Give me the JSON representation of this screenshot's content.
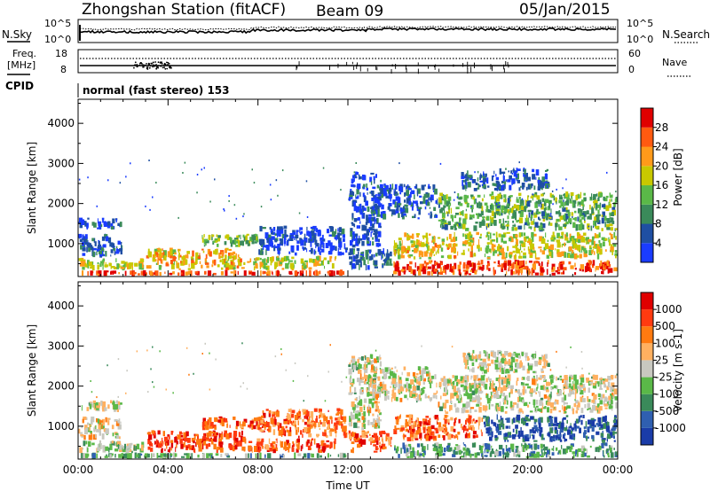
{
  "header": {
    "title": "Zhongshan Station (fitACF)",
    "beam": "Beam 09",
    "date": "05/Jan/2015"
  },
  "top_panels": {
    "nsky": {
      "label": "N.Sky",
      "ticks": [
        "10^5",
        "10^0"
      ]
    },
    "nsearch": {
      "label": "N.Search",
      "ticks": [
        "10^5",
        "10^0"
      ]
    },
    "freq": {
      "label_line1": "Freq.",
      "label_line2": "[MHz]",
      "ticks": [
        "18",
        "8"
      ]
    },
    "nave": {
      "label": "Nave",
      "ticks": [
        "60",
        "0"
      ]
    },
    "cpid": {
      "label": "CPID",
      "text": "normal (fast stereo) 153"
    }
  },
  "chart_data": [
    {
      "type": "heatmap",
      "name": "power",
      "ylabel": "Slant Range [km]",
      "xlabel": "",
      "xlim": [
        0,
        24
      ],
      "ylim": [
        180,
        4600
      ],
      "y_ticks": [
        1000,
        2000,
        3000,
        4000
      ],
      "colorbar": {
        "label": "Power [dB]",
        "ticks": [
          "4",
          "8",
          "12",
          "16",
          "20",
          "24",
          "28"
        ],
        "colors": [
          "#1a3cff",
          "#1f4fa3",
          "#3a8a5a",
          "#5ab848",
          "#c8c800",
          "#ff9a1a",
          "#ff5a10",
          "#e00000"
        ]
      },
      "regions": [
        {
          "t0": 0.0,
          "t1": 12.0,
          "r0": 200,
          "r1": 330,
          "level": 0.85
        },
        {
          "t0": 0.0,
          "t1": 3.0,
          "r0": 330,
          "r1": 650,
          "level": 0.55
        },
        {
          "t0": 0.0,
          "t1": 2.0,
          "r0": 650,
          "r1": 1250,
          "level": 0.18
        },
        {
          "t0": 0.0,
          "t1": 2.0,
          "r0": 1350,
          "r1": 1650,
          "level": 0.12
        },
        {
          "t0": 3.0,
          "t1": 7.5,
          "r0": 330,
          "r1": 900,
          "level": 0.65
        },
        {
          "t0": 5.5,
          "t1": 8.5,
          "r0": 900,
          "r1": 1250,
          "level": 0.45
        },
        {
          "t0": 7.5,
          "t1": 11.5,
          "r0": 330,
          "r1": 700,
          "level": 0.55
        },
        {
          "t0": 8.0,
          "t1": 12.0,
          "r0": 700,
          "r1": 1450,
          "level": 0.1
        },
        {
          "t0": 12.0,
          "t1": 13.5,
          "r0": 900,
          "r1": 2800,
          "level": 0.12
        },
        {
          "t0": 12.0,
          "t1": 14.0,
          "r0": 330,
          "r1": 900,
          "level": 0.25
        },
        {
          "t0": 14.0,
          "t1": 18.0,
          "r0": 600,
          "r1": 1300,
          "level": 0.6
        },
        {
          "t0": 14.0,
          "t1": 24.0,
          "r0": 200,
          "r1": 600,
          "level": 0.85
        },
        {
          "t0": 13.0,
          "t1": 16.0,
          "r0": 1600,
          "r1": 2500,
          "level": 0.15
        },
        {
          "t0": 16.0,
          "t1": 24.0,
          "r0": 1300,
          "r1": 2300,
          "level": 0.4
        },
        {
          "t0": 17.0,
          "t1": 21.0,
          "r0": 2300,
          "r1": 2900,
          "level": 0.2
        },
        {
          "t0": 18.0,
          "t1": 24.0,
          "r0": 600,
          "r1": 1300,
          "level": 0.55
        }
      ]
    },
    {
      "type": "heatmap",
      "name": "velocity",
      "ylabel": "Slant Range [km]",
      "xlabel": "Time UT",
      "xlim": [
        0,
        24
      ],
      "ylim": [
        180,
        4600
      ],
      "y_ticks": [
        1000,
        2000,
        3000,
        4000
      ],
      "x_ticks": [
        "00:00",
        "04:00",
        "08:00",
        "12:00",
        "16:00",
        "20:00",
        "00:00"
      ],
      "colorbar": {
        "label": "Velocity [m s-1]",
        "ticks": [
          "1000",
          "500",
          "100",
          "25",
          "-25",
          "-100",
          "-500",
          "-1000"
        ],
        "colors": [
          "#1a3ca8",
          "#2f5fb0",
          "#3a8a5a",
          "#5ab848",
          "#c8c8c0",
          "#ffb060",
          "#ff7a10",
          "#ff3a10",
          "#e00000"
        ]
      },
      "regions": [
        {
          "t0": 0.0,
          "t1": 12.0,
          "r0": 200,
          "r1": 330,
          "level": 0.35
        },
        {
          "t0": 0.0,
          "t1": 3.0,
          "r0": 330,
          "r1": 650,
          "level": 0.45
        },
        {
          "t0": 0.0,
          "t1": 2.0,
          "r0": 650,
          "r1": 1250,
          "level": 0.55
        },
        {
          "t0": 0.0,
          "t1": 2.0,
          "r0": 1350,
          "r1": 1650,
          "level": 0.5
        },
        {
          "t0": 3.0,
          "t1": 7.5,
          "r0": 330,
          "r1": 900,
          "level": 0.85
        },
        {
          "t0": 5.5,
          "t1": 8.5,
          "r0": 900,
          "r1": 1250,
          "level": 0.8
        },
        {
          "t0": 7.5,
          "t1": 11.5,
          "r0": 330,
          "r1": 700,
          "level": 0.8
        },
        {
          "t0": 8.0,
          "t1": 12.0,
          "r0": 700,
          "r1": 1450,
          "level": 0.75
        },
        {
          "t0": 12.0,
          "t1": 13.5,
          "r0": 900,
          "r1": 2800,
          "level": 0.5
        },
        {
          "t0": 12.0,
          "t1": 14.0,
          "r0": 330,
          "r1": 900,
          "level": 0.78
        },
        {
          "t0": 14.0,
          "t1": 18.0,
          "r0": 600,
          "r1": 1300,
          "level": 0.78
        },
        {
          "t0": 14.0,
          "t1": 24.0,
          "r0": 200,
          "r1": 600,
          "level": 0.3
        },
        {
          "t0": 13.0,
          "t1": 16.0,
          "r0": 1600,
          "r1": 2500,
          "level": 0.5
        },
        {
          "t0": 16.0,
          "t1": 24.0,
          "r0": 1300,
          "r1": 2300,
          "level": 0.5
        },
        {
          "t0": 17.0,
          "t1": 21.0,
          "r0": 2300,
          "r1": 2900,
          "level": 0.5
        },
        {
          "t0": 18.0,
          "t1": 24.0,
          "r0": 600,
          "r1": 1300,
          "level": 0.15
        }
      ]
    }
  ]
}
